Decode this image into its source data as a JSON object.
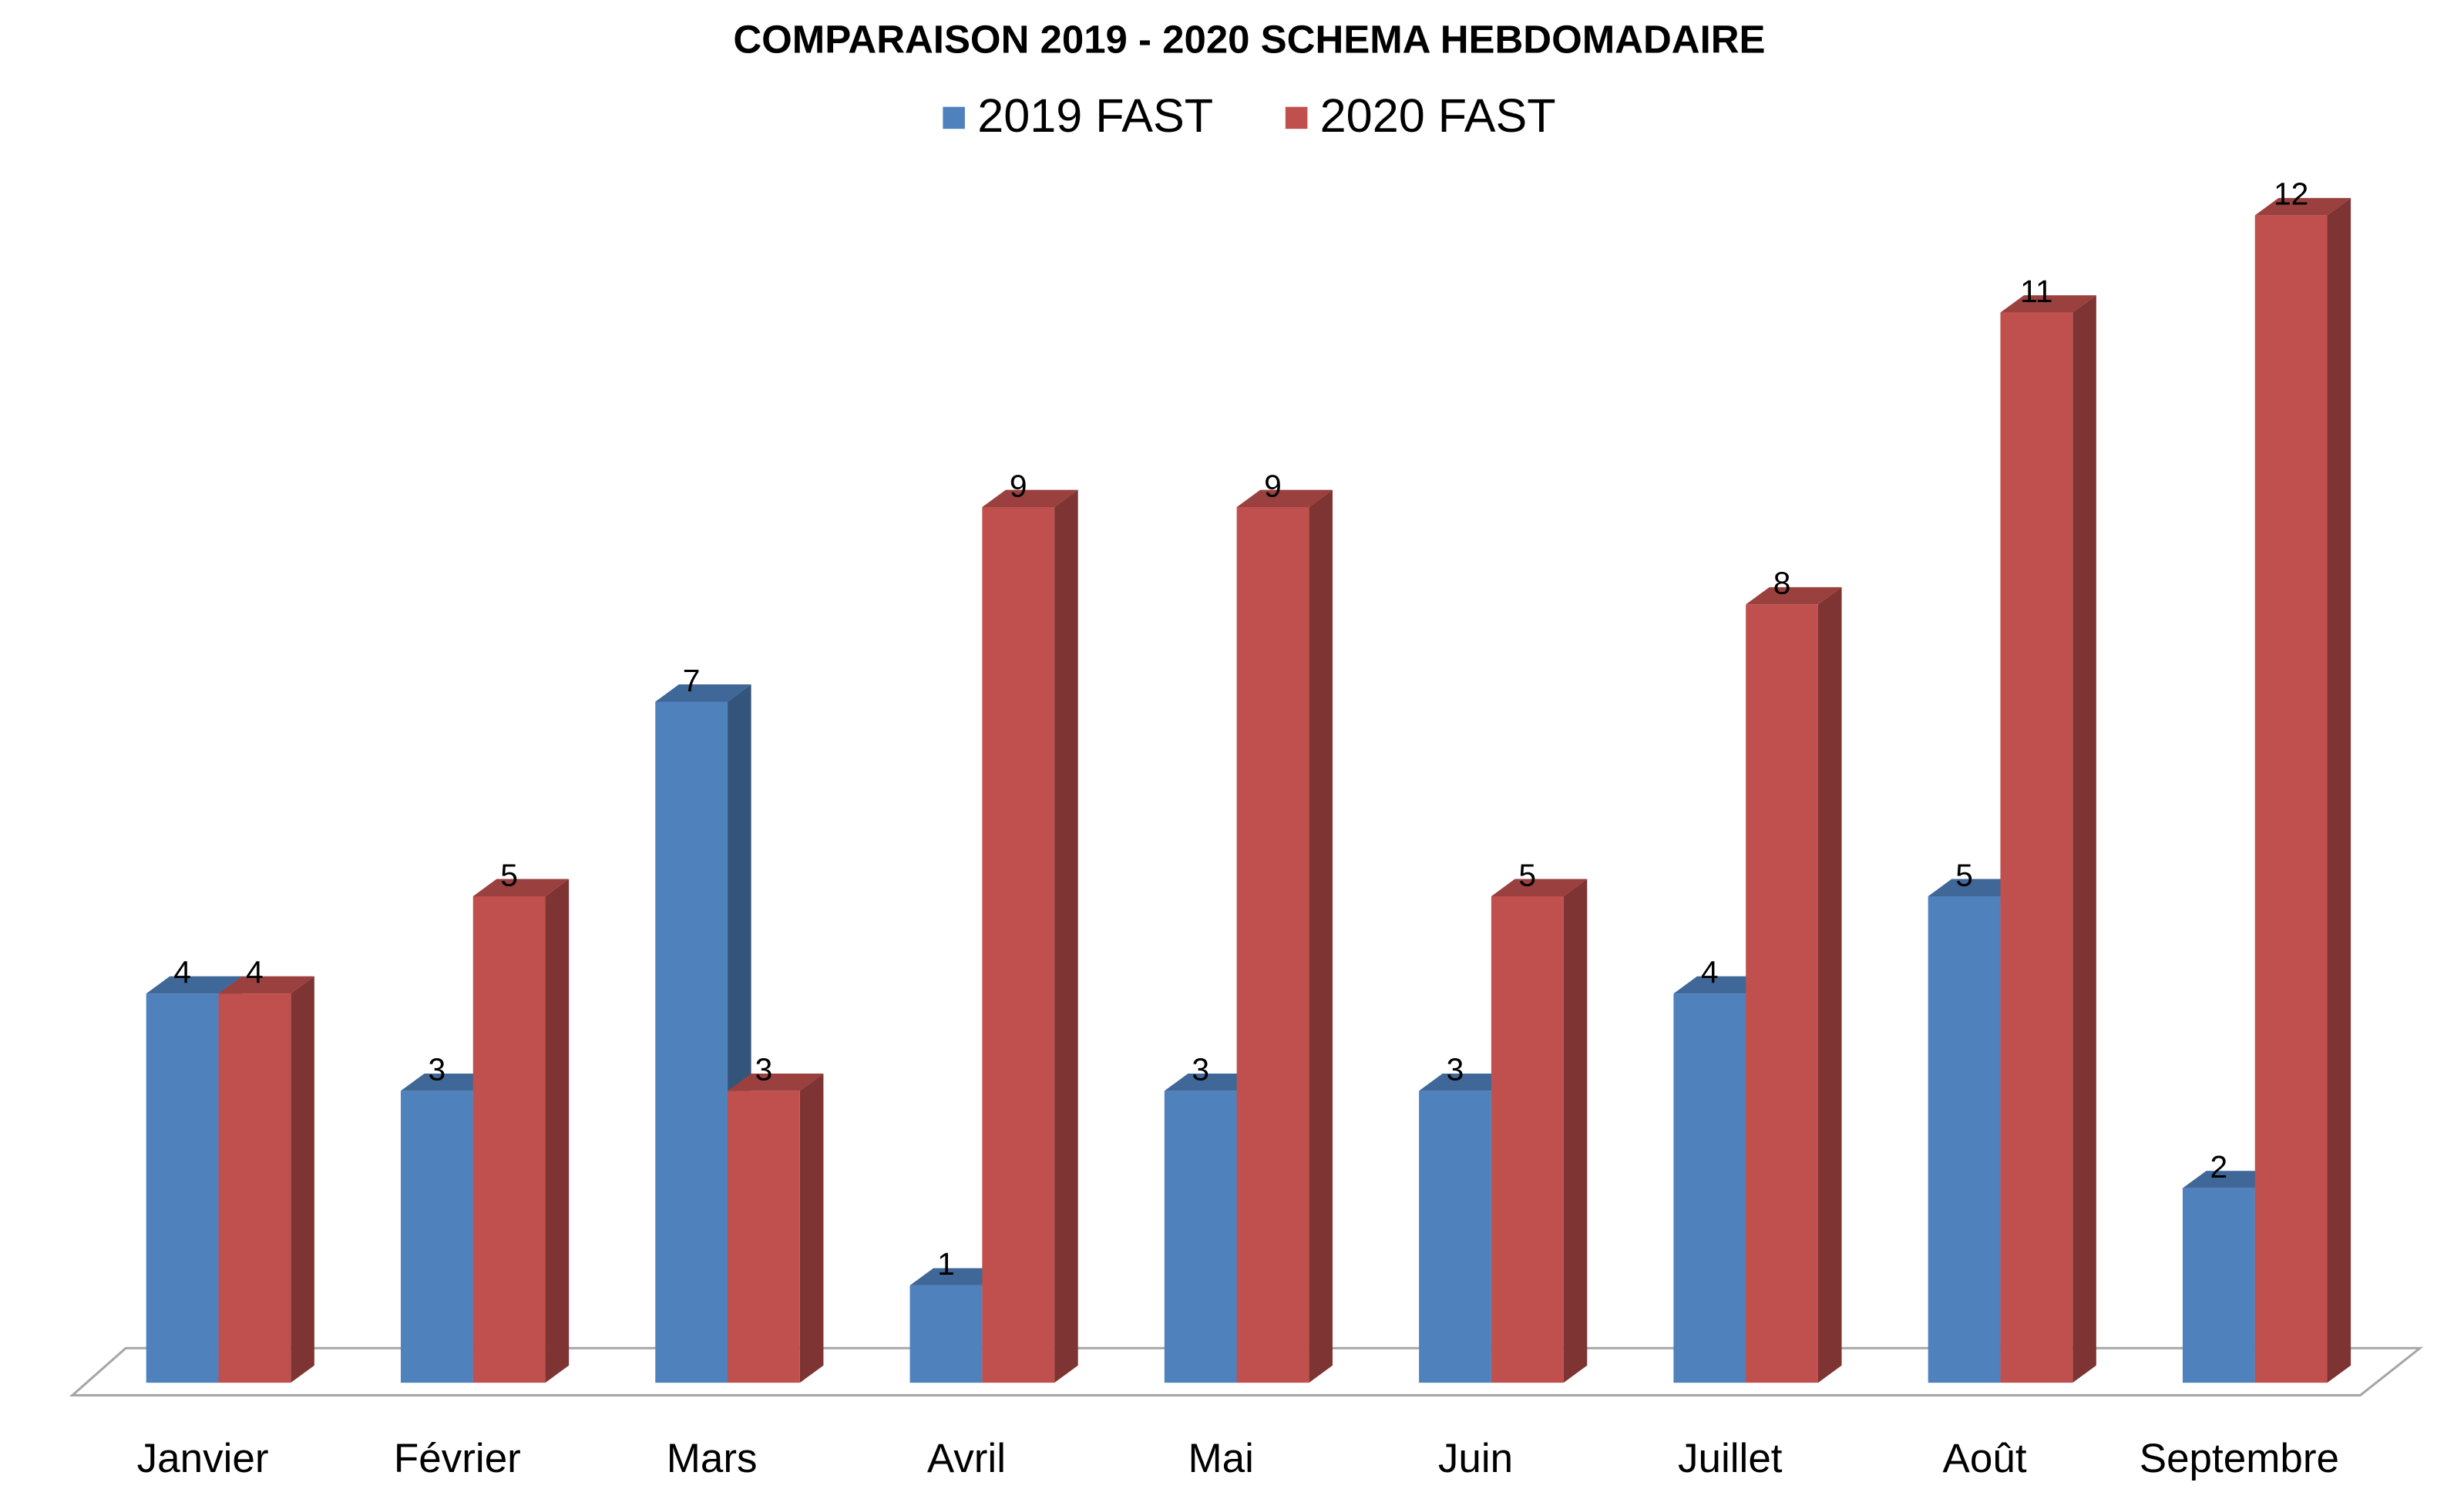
{
  "chart_data": {
    "type": "bar3d",
    "title": "COMPARAISON 2019 - 2020 SCHEMA HEBDOMADAIRE",
    "categories": [
      "Janvier",
      "Février",
      "Mars",
      "Avril",
      "Mai",
      "Juin",
      "Juillet",
      "Août",
      "Septembre"
    ],
    "series": [
      {
        "name": "2019 FAST",
        "color": "#4f81bd",
        "values": [
          4,
          3,
          7,
          1,
          3,
          3,
          4,
          5,
          2
        ]
      },
      {
        "name": "2020 FAST",
        "color": "#c0504d",
        "values": [
          4,
          5,
          3,
          9,
          9,
          5,
          8,
          11,
          12
        ]
      }
    ],
    "legend": "top",
    "data_labels": true
  }
}
